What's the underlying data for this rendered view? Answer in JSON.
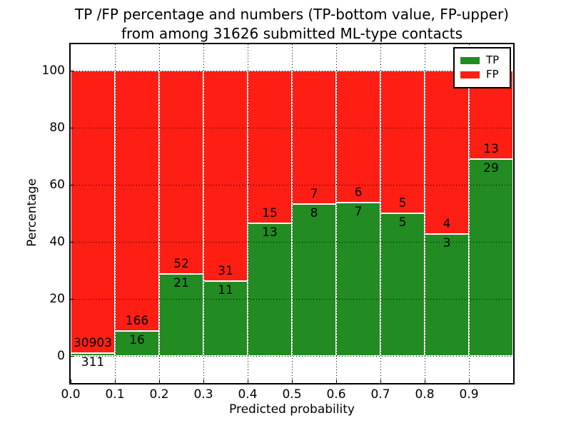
{
  "chart_data": {
    "type": "bar",
    "stacked": true,
    "normalized_to_percent": true,
    "title_line1": "TP /FP percentage and numbers (TP-bottom value, FP-upper)",
    "title_line2": "from among 31626 submitted ML-type contacts",
    "xlabel": "Predicted probability",
    "ylabel": "Percentage",
    "x_axis": {
      "lim": [
        0.0,
        1.0
      ],
      "tick_values": [
        0.0,
        0.1,
        0.2,
        0.3,
        0.4,
        0.5,
        0.6,
        0.7,
        0.8,
        0.9
      ],
      "tick_labels": [
        "0.0",
        "0.1",
        "0.2",
        "0.3",
        "0.4",
        "0.5",
        "0.6",
        "0.7",
        "0.8",
        "0.9"
      ]
    },
    "y_axis": {
      "lim": [
        -9.5,
        109.25
      ],
      "tick_values": [
        0,
        20,
        40,
        60,
        80,
        100
      ],
      "tick_labels": [
        "0",
        "20",
        "40",
        "60",
        "80",
        "100"
      ]
    },
    "grid": {
      "on": true,
      "style": "dotted",
      "color": "#000000"
    },
    "colors": {
      "tp": "#228B22",
      "fp": "#FF1E14",
      "bar_edge": "#ffffff"
    },
    "bin_width": 0.1,
    "bins": [
      {
        "x_start": 0.0,
        "x_end": 0.1,
        "tp": 311,
        "fp": 30903
      },
      {
        "x_start": 0.1,
        "x_end": 0.2,
        "tp": 16,
        "fp": 166
      },
      {
        "x_start": 0.2,
        "x_end": 0.3,
        "tp": 21,
        "fp": 52
      },
      {
        "x_start": 0.3,
        "x_end": 0.4,
        "tp": 11,
        "fp": 31
      },
      {
        "x_start": 0.4,
        "x_end": 0.5,
        "tp": 13,
        "fp": 15
      },
      {
        "x_start": 0.5,
        "x_end": 0.6,
        "tp": 8,
        "fp": 7
      },
      {
        "x_start": 0.6,
        "x_end": 0.7,
        "tp": 7,
        "fp": 6
      },
      {
        "x_start": 0.7,
        "x_end": 0.8,
        "tp": 5,
        "fp": 5
      },
      {
        "x_start": 0.8,
        "x_end": 0.9,
        "tp": 3,
        "fp": 4
      },
      {
        "x_start": 0.9,
        "x_end": 1.0,
        "tp": 29,
        "fp": 13
      }
    ],
    "annotation_rule": "FP count printed above TP/FP boundary, TP count printed below boundary",
    "legend": {
      "position": "upper right",
      "entries": [
        {
          "label": "TP",
          "color_key": "tp"
        },
        {
          "label": "FP",
          "color_key": "fp"
        }
      ]
    }
  }
}
